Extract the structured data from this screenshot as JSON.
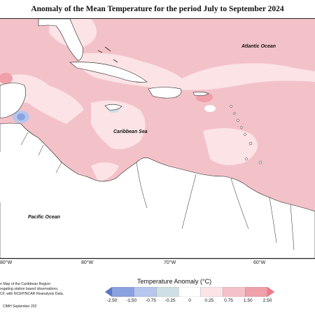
{
  "title": "Anomaly of the Mean Temperature for the period July to September 2024",
  "ocean_labels": {
    "atlantic": "Atlantic Ocean",
    "caribbean": "Caribbean Sea",
    "pacific": "Pacific Ocean"
  },
  "longitude_labels": [
    "80°W",
    "80°W",
    "70°W",
    "60°W"
  ],
  "credit": {
    "line1": "n Map of the Caribbean Region",
    "line2": "regating station based observations,",
    "line3": "CF, with NCEP/NCAR Reanalysis Data.",
    "line4": "CIMH September 202"
  },
  "legend": {
    "title": "Temperature Anomaly (°C)",
    "ticks": [
      "-2.50",
      "-1.50",
      "-0.75",
      "-0.25",
      "0",
      "0.25",
      "0.75",
      "1.50",
      "2.50"
    ],
    "colors": [
      "#5a78c8",
      "#8aa2e0",
      "#b6c6ec",
      "#cfdfe6",
      "#ffffff",
      "#fbe3e6",
      "#f3c2c8",
      "#f0a0aa",
      "#f07a86"
    ]
  }
}
